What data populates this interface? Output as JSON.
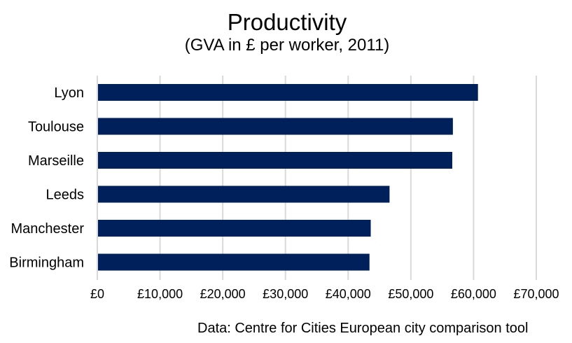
{
  "chart_data": {
    "type": "bar",
    "orientation": "horizontal",
    "title": "Productivity",
    "subtitle": "(GVA in £ per worker, 2011)",
    "categories": [
      "Lyon",
      "Toulouse",
      "Marseille",
      "Leeds",
      "Manchester",
      "Birmingham"
    ],
    "values": [
      60700,
      56700,
      56600,
      46600,
      43600,
      43400
    ],
    "xlim": [
      0,
      70000
    ],
    "xticks": [
      0,
      10000,
      20000,
      30000,
      40000,
      50000,
      60000,
      70000
    ],
    "xtick_labels": [
      "£0",
      "£10,000",
      "£20,000",
      "£30,000",
      "£40,000",
      "£50,000",
      "£60,000",
      "£70,000"
    ],
    "grid": "vertical",
    "legend": "none",
    "bar_color": "#00205b",
    "grid_color": "#d9d9d9",
    "source": "Data: Centre for Cities European city comparison tool"
  }
}
